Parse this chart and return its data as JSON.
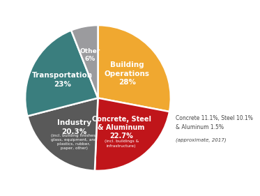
{
  "slices": [
    {
      "label": "Building\nOperations\n28%",
      "value": 28,
      "color": "#F0A830",
      "text_color": "#FFFFFF",
      "fontsize": 7.5,
      "r_label": 0.52
    },
    {
      "label": "Concrete, Steel\n& Aluminum\n22.7%",
      "value": 22.7,
      "color": "#C0151A",
      "text_color": "#FFFFFF",
      "fontsize": 7.0,
      "r_label": 0.52
    },
    {
      "label": "Industry\n20.3%",
      "value": 20.3,
      "color": "#595959",
      "text_color": "#FFFFFF",
      "fontsize": 7.5,
      "r_label": 0.52
    },
    {
      "label": "Transportation\n23%",
      "value": 23,
      "color": "#3A7E7E",
      "text_color": "#FFFFFF",
      "fontsize": 7.5,
      "r_label": 0.55
    },
    {
      "label": "Other\n6%",
      "value": 6,
      "color": "#9B9B9E",
      "text_color": "#FFFFFF",
      "fontsize": 6.5,
      "r_label": 0.6
    }
  ],
  "sub_label_industry": "(incl. building finishes,\nglass, equipment, and\nplastics, rubber,\npaper, other)",
  "sub_label_concrete": "(incl. buildings &\ninfrastructure)",
  "annotation_line1": "Concrete 11.1%, Steel 10.1%",
  "annotation_line2": "& Aluminum 1.5%",
  "annotation_line3": "(approximate, 2017)",
  "startangle": 90,
  "background_color": "#FFFFFF"
}
